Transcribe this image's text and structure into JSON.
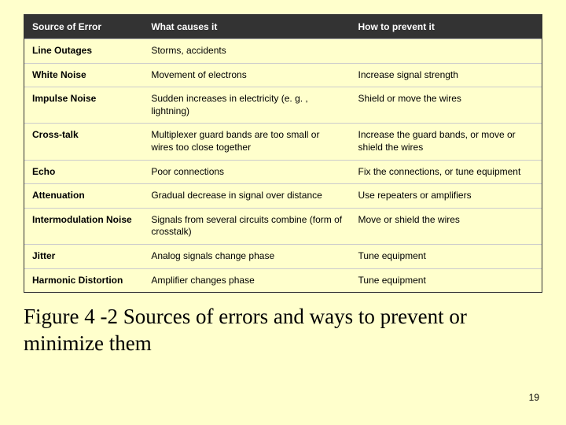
{
  "slide": {
    "background_color": "#ffffcc",
    "page_number": "19"
  },
  "table": {
    "header_bg": "#333333",
    "header_fg": "#ffffff",
    "row_border": "#cccccc",
    "columns": [
      {
        "key": "source",
        "label": "Source of Error",
        "width_pct": 23
      },
      {
        "key": "cause",
        "label": "What causes it",
        "width_pct": 40
      },
      {
        "key": "prevent",
        "label": "How to prevent it",
        "width_pct": 37
      }
    ],
    "rows": [
      {
        "source": "Line Outages",
        "cause": "Storms, accidents",
        "prevent": ""
      },
      {
        "source": "White Noise",
        "cause": "Movement of electrons",
        "prevent": "Increase signal strength"
      },
      {
        "source": "Impulse Noise",
        "cause": "Sudden increases in electricity (e. g. , lightning)",
        "prevent": "Shield  or move the wires"
      },
      {
        "source": "Cross-talk",
        "cause": "Multiplexer guard bands are too small or wires too close together",
        "prevent": "Increase the guard bands, or move or shield the wires"
      },
      {
        "source": "Echo",
        "cause": "Poor connections",
        "prevent": "Fix the connections, or tune equipment"
      },
      {
        "source": "Attenuation",
        "cause": "Gradual decrease in signal over distance",
        "prevent": "Use repeaters or amplifiers"
      },
      {
        "source": "Intermodulation Noise",
        "cause": "Signals from several circuits combine (form of crosstalk)",
        "prevent": "Move or shield the wires"
      },
      {
        "source": "Jitter",
        "cause": "Analog signals change phase",
        "prevent": "Tune equipment"
      },
      {
        "source": "Harmonic Distortion",
        "cause": "Amplifier changes phase",
        "prevent": "Tune equipment"
      }
    ]
  },
  "caption": "Figure 4 -2 Sources of errors and ways to prevent or minimize them"
}
